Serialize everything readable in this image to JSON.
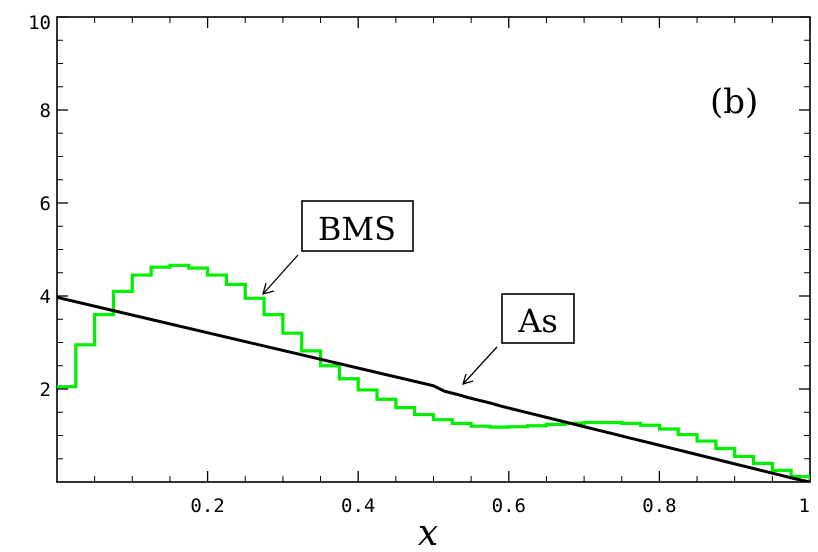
{
  "chart_data": {
    "type": "line",
    "xlabel": "x",
    "ylabel": "",
    "xlim": [
      0,
      1
    ],
    "ylim": [
      0,
      10
    ],
    "grid": false,
    "x_ticks": [
      0.2,
      0.4,
      0.6,
      0.8,
      1
    ],
    "x_tick_labels": [
      "0.2",
      "0.4",
      "0.6",
      "0.8",
      "1"
    ],
    "y_ticks": [
      2,
      4,
      6,
      8,
      10
    ],
    "y_tick_labels": [
      "2",
      "4",
      "6",
      "8",
      "10"
    ],
    "panel_label": "(b)",
    "annotations": [
      "BMS",
      "As"
    ],
    "series": [
      {
        "name": "BMS",
        "color": "#00ee00",
        "step": true,
        "x": [
          0.0,
          0.025,
          0.05,
          0.075,
          0.1,
          0.125,
          0.15,
          0.175,
          0.2,
          0.225,
          0.25,
          0.275,
          0.3,
          0.325,
          0.35,
          0.375,
          0.4,
          0.425,
          0.45,
          0.475,
          0.5,
          0.525,
          0.55,
          0.575,
          0.6,
          0.625,
          0.65,
          0.675,
          0.7,
          0.725,
          0.75,
          0.775,
          0.8,
          0.825,
          0.85,
          0.875,
          0.9,
          0.925,
          0.95,
          0.975,
          1.0
        ],
        "y": [
          2.05,
          2.95,
          3.6,
          4.1,
          4.45,
          4.62,
          4.66,
          4.6,
          4.45,
          4.25,
          3.95,
          3.6,
          3.2,
          2.82,
          2.5,
          2.22,
          1.98,
          1.78,
          1.6,
          1.45,
          1.34,
          1.26,
          1.2,
          1.18,
          1.19,
          1.21,
          1.24,
          1.26,
          1.28,
          1.28,
          1.26,
          1.22,
          1.14,
          1.02,
          0.88,
          0.72,
          0.55,
          0.4,
          0.25,
          0.12,
          0.02
        ]
      },
      {
        "name": "As",
        "color": "#000000",
        "step": false,
        "x": [
          0.0,
          0.5,
          0.515,
          0.53,
          0.545,
          0.56,
          0.575,
          0.59,
          0.605,
          0.62,
          0.635,
          0.65,
          0.665,
          0.68,
          0.695,
          0.71,
          0.725,
          0.74,
          0.755,
          0.77,
          0.785,
          0.8,
          0.815,
          0.83,
          0.845,
          0.86,
          0.875,
          0.89,
          0.905,
          0.92,
          0.935,
          0.95,
          0.965,
          0.98,
          1.0
        ],
        "y": [
          3.97,
          2.07,
          1.95,
          1.89,
          1.82,
          1.76,
          1.7,
          1.63,
          1.57,
          1.51,
          1.45,
          1.39,
          1.33,
          1.27,
          1.21,
          1.15,
          1.09,
          1.03,
          0.97,
          0.91,
          0.85,
          0.79,
          0.73,
          0.67,
          0.61,
          0.55,
          0.49,
          0.43,
          0.37,
          0.31,
          0.25,
          0.19,
          0.13,
          0.07,
          0.0
        ]
      }
    ]
  }
}
